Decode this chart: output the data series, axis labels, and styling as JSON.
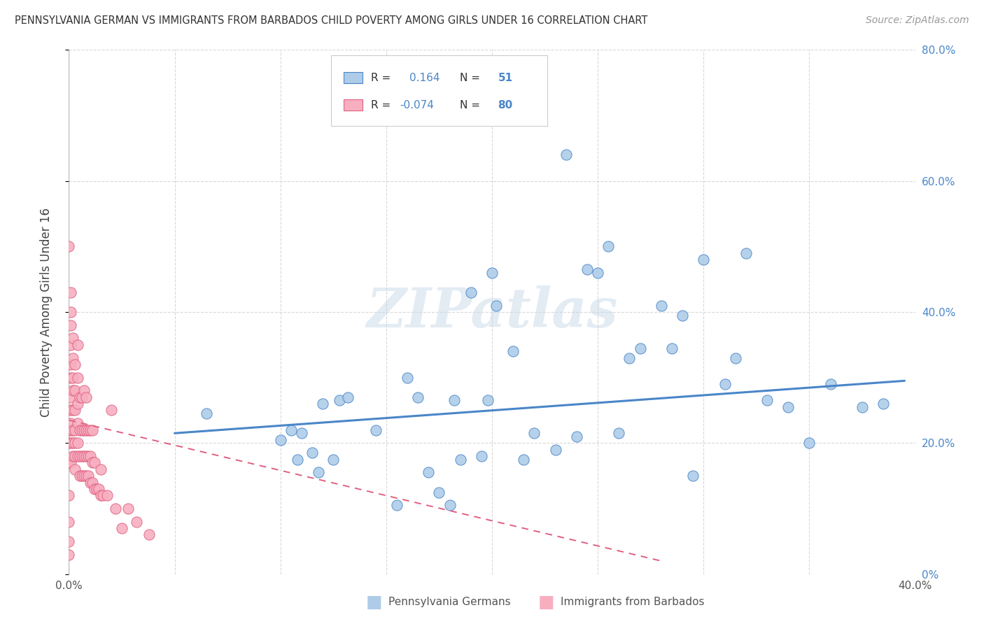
{
  "title": "PENNSYLVANIA GERMAN VS IMMIGRANTS FROM BARBADOS CHILD POVERTY AMONG GIRLS UNDER 16 CORRELATION CHART",
  "source": "Source: ZipAtlas.com",
  "ylabel": "Child Poverty Among Girls Under 16",
  "xlim": [
    0,
    0.4
  ],
  "ylim": [
    0,
    0.8
  ],
  "R1": 0.164,
  "N1": 51,
  "R2": -0.074,
  "N2": 80,
  "color_blue": "#aecce8",
  "color_pink": "#f7afc0",
  "line_blue": "#4a86c8",
  "line_pink": "#e06080",
  "background_color": "#ffffff",
  "grid_color": "#d8d8d8",
  "blue_x": [
    0.065,
    0.1,
    0.105,
    0.108,
    0.11,
    0.115,
    0.118,
    0.12,
    0.125,
    0.128,
    0.132,
    0.145,
    0.155,
    0.16,
    0.165,
    0.17,
    0.175,
    0.18,
    0.182,
    0.185,
    0.19,
    0.195,
    0.198,
    0.2,
    0.202,
    0.21,
    0.215,
    0.22,
    0.23,
    0.235,
    0.24,
    0.245,
    0.25,
    0.255,
    0.26,
    0.265,
    0.27,
    0.28,
    0.285,
    0.29,
    0.295,
    0.3,
    0.31,
    0.315,
    0.32,
    0.33,
    0.34,
    0.35,
    0.36,
    0.375,
    0.385
  ],
  "blue_y": [
    0.245,
    0.205,
    0.22,
    0.175,
    0.215,
    0.185,
    0.155,
    0.26,
    0.175,
    0.265,
    0.27,
    0.22,
    0.105,
    0.3,
    0.27,
    0.155,
    0.125,
    0.105,
    0.265,
    0.175,
    0.43,
    0.18,
    0.265,
    0.46,
    0.41,
    0.34,
    0.175,
    0.215,
    0.19,
    0.64,
    0.21,
    0.465,
    0.46,
    0.5,
    0.215,
    0.33,
    0.345,
    0.41,
    0.345,
    0.395,
    0.15,
    0.48,
    0.29,
    0.33,
    0.49,
    0.265,
    0.255,
    0.2,
    0.29,
    0.255,
    0.26
  ],
  "pink_x": [
    0.0,
    0.0,
    0.0,
    0.0,
    0.0,
    0.0,
    0.0,
    0.0,
    0.001,
    0.001,
    0.001,
    0.001,
    0.001,
    0.001,
    0.001,
    0.001,
    0.001,
    0.001,
    0.001,
    0.001,
    0.002,
    0.002,
    0.002,
    0.002,
    0.002,
    0.002,
    0.002,
    0.002,
    0.003,
    0.003,
    0.003,
    0.003,
    0.003,
    0.003,
    0.003,
    0.004,
    0.004,
    0.004,
    0.004,
    0.004,
    0.004,
    0.005,
    0.005,
    0.005,
    0.005,
    0.006,
    0.006,
    0.006,
    0.006,
    0.007,
    0.007,
    0.007,
    0.007,
    0.008,
    0.008,
    0.008,
    0.008,
    0.009,
    0.009,
    0.009,
    0.01,
    0.01,
    0.01,
    0.011,
    0.011,
    0.011,
    0.012,
    0.012,
    0.013,
    0.014,
    0.015,
    0.015,
    0.016,
    0.018,
    0.02,
    0.022,
    0.025,
    0.028,
    0.032,
    0.038
  ],
  "pink_y": [
    0.03,
    0.05,
    0.08,
    0.12,
    0.17,
    0.2,
    0.22,
    0.5,
    0.17,
    0.2,
    0.22,
    0.23,
    0.25,
    0.27,
    0.3,
    0.32,
    0.35,
    0.38,
    0.4,
    0.43,
    0.18,
    0.2,
    0.22,
    0.25,
    0.28,
    0.3,
    0.33,
    0.36,
    0.16,
    0.18,
    0.2,
    0.22,
    0.25,
    0.28,
    0.32,
    0.18,
    0.2,
    0.23,
    0.26,
    0.3,
    0.35,
    0.15,
    0.18,
    0.22,
    0.27,
    0.15,
    0.18,
    0.22,
    0.27,
    0.15,
    0.18,
    0.22,
    0.28,
    0.15,
    0.18,
    0.22,
    0.27,
    0.15,
    0.18,
    0.22,
    0.14,
    0.18,
    0.22,
    0.14,
    0.17,
    0.22,
    0.13,
    0.17,
    0.13,
    0.13,
    0.12,
    0.16,
    0.12,
    0.12,
    0.25,
    0.1,
    0.07,
    0.1,
    0.08,
    0.06
  ]
}
